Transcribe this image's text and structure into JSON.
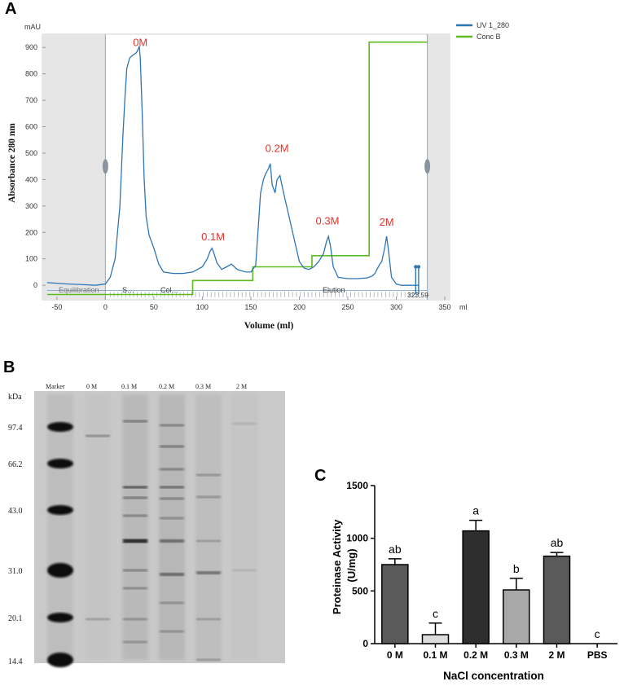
{
  "panel_labels": {
    "a": "A",
    "b": "B",
    "c": "C"
  },
  "chart_data": [
    {
      "panel": "A",
      "type": "line",
      "ylabel": "Absorbance 280 nm",
      "yunit": "mAU",
      "xlabel": "Volume (ml)",
      "xunit": "ml",
      "xlim": [
        -65,
        355
      ],
      "ylim": [
        -55,
        950
      ],
      "xticks": [
        -50,
        0,
        50,
        100,
        150,
        200,
        250,
        300,
        350
      ],
      "yticks": [
        0,
        100,
        200,
        300,
        400,
        500,
        600,
        700,
        800,
        900
      ],
      "legend": [
        {
          "name": "UV 1_280",
          "color": "#2E75B6"
        },
        {
          "name": "Conc B",
          "color": "#5DBB1F"
        }
      ],
      "phase_labels": [
        "Equilibration",
        "S…",
        "Col…",
        "Elution"
      ],
      "end_marker_label": "323,59",
      "peak_labels": [
        {
          "text": "0M",
          "x": 36,
          "y": 905
        },
        {
          "text": "0.1M",
          "x": 111,
          "y": 170
        },
        {
          "text": "0.2M",
          "x": 177,
          "y": 505
        },
        {
          "text": "0.3M",
          "x": 229,
          "y": 230
        },
        {
          "text": "2M",
          "x": 290,
          "y": 225
        }
      ],
      "series": [
        {
          "name": "UV 1_280",
          "x": [
            -60,
            -40,
            -20,
            -10,
            0,
            5,
            10,
            15,
            18,
            20,
            22,
            25,
            28,
            30,
            32,
            34,
            35,
            36,
            38,
            40,
            42,
            45,
            50,
            55,
            60,
            70,
            80,
            90,
            100,
            105,
            108,
            110,
            112,
            115,
            120,
            125,
            130,
            133,
            136,
            140,
            145,
            150,
            155,
            160,
            163,
            165,
            168,
            170,
            172,
            175,
            177,
            180,
            182,
            185,
            190,
            195,
            200,
            205,
            210,
            215,
            220,
            225,
            228,
            230,
            232,
            235,
            240,
            250,
            260,
            270,
            275,
            278,
            280,
            283,
            285,
            288,
            290,
            292,
            295,
            300,
            305,
            310,
            315,
            320,
            323
          ],
          "y": [
            10,
            5,
            2,
            0,
            5,
            30,
            100,
            300,
            560,
            700,
            820,
            860,
            870,
            875,
            880,
            895,
            905,
            860,
            650,
            400,
            260,
            190,
            140,
            80,
            50,
            45,
            45,
            50,
            70,
            100,
            130,
            140,
            120,
            85,
            60,
            70,
            80,
            70,
            60,
            55,
            50,
            50,
            75,
            350,
            400,
            420,
            440,
            460,
            380,
            350,
            400,
            415,
            380,
            330,
            250,
            170,
            90,
            65,
            60,
            70,
            90,
            120,
            165,
            185,
            150,
            70,
            30,
            25,
            25,
            28,
            35,
            45,
            60,
            80,
            90,
            140,
            185,
            130,
            30,
            5,
            0,
            0,
            0,
            0,
            0
          ]
        },
        {
          "name": "Conc B",
          "x": [
            -60,
            0,
            90,
            90,
            152,
            152,
            213,
            213,
            272,
            272,
            332
          ],
          "y": [
            -35,
            -35,
            -35,
            18,
            18,
            70,
            70,
            112,
            112,
            920,
            920
          ]
        }
      ]
    },
    {
      "panel": "B",
      "type": "table",
      "unit_label": "kDa",
      "lane_labels": [
        "Marker",
        "0 M",
        "0.1 M",
        "0.2 M",
        "0.3 M",
        "2 M"
      ],
      "marker_sizes": [
        "97.4",
        "66.2",
        "43.0",
        "31.0",
        "20.1",
        "14.4"
      ]
    },
    {
      "panel": "C",
      "type": "bar",
      "ylabel": "Proteinase Activity\n(U/mg)",
      "xlabel": "NaCl concentration",
      "categories": [
        "0 M",
        "0.1 M",
        "0.2 M",
        "0.3 M",
        "2 M",
        "PBS"
      ],
      "values": [
        750,
        85,
        1070,
        510,
        830,
        0
      ],
      "errors": [
        55,
        110,
        100,
        110,
        35,
        0
      ],
      "letters": [
        "ab",
        "c",
        "a",
        "b",
        "ab",
        "c"
      ],
      "colors": [
        "#5A5A5A",
        "#DCDCDC",
        "#2E2E2E",
        "#A8A8A8",
        "#5A5A5A",
        "#FFFFFF"
      ],
      "ylim": [
        0,
        1500
      ],
      "yticks": [
        0,
        500,
        1000,
        1500
      ]
    }
  ]
}
